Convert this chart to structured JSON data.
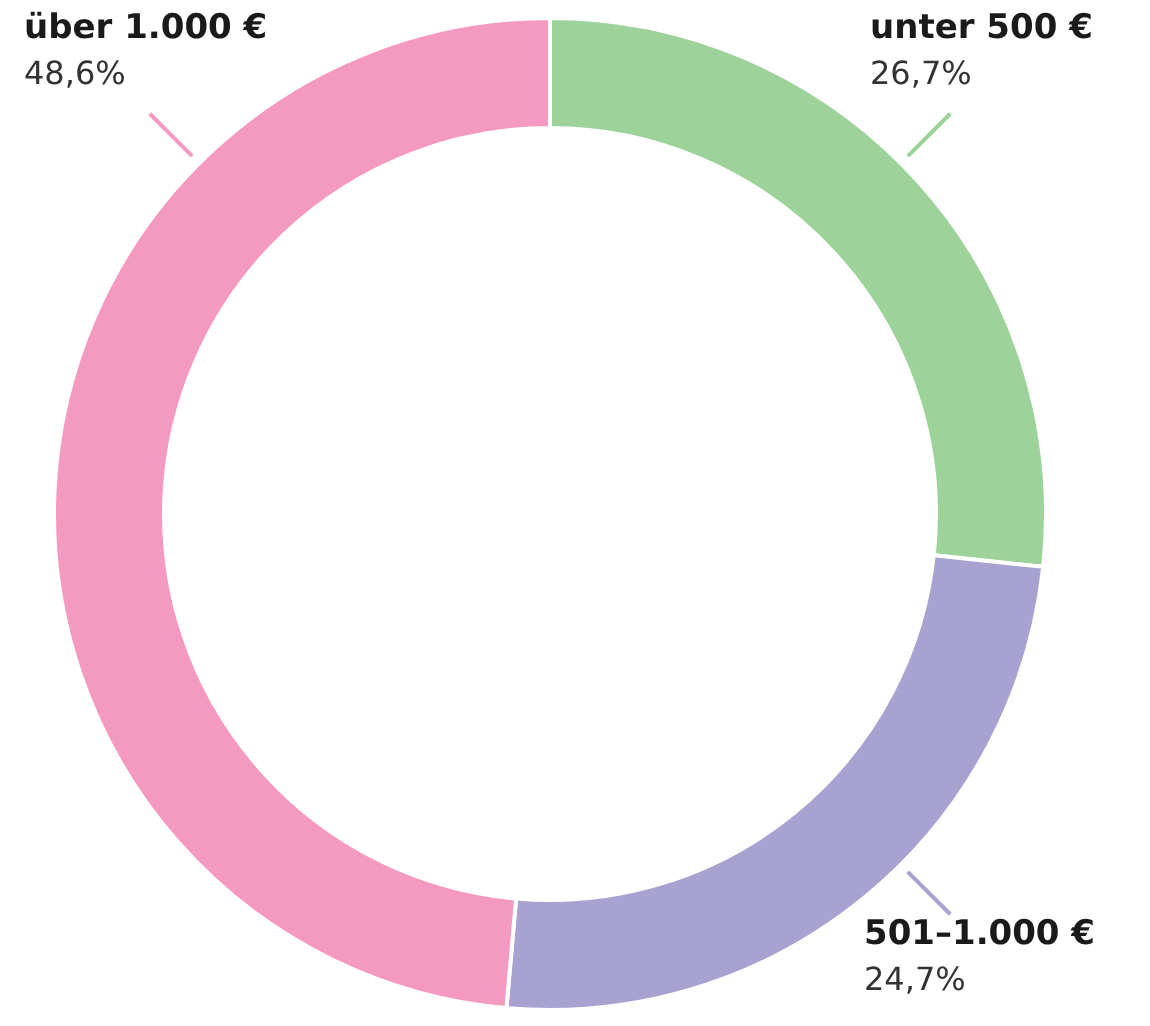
{
  "chart_data": {
    "type": "donut",
    "categories": [
      "unter 500 €",
      "501–1.000 €",
      "über 1.000 €"
    ],
    "values": [
      26.7,
      24.7,
      48.6
    ],
    "colors": [
      "#9dd29a",
      "#a8a2d0",
      "#f49ac1"
    ],
    "value_labels": [
      "26,7%",
      "24,7%",
      "48,6%"
    ]
  }
}
